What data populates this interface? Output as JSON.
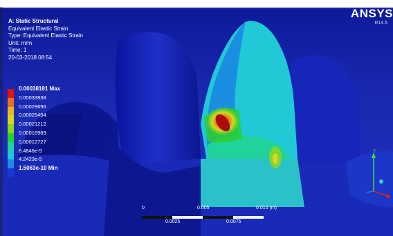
{
  "analysis": {
    "title": "A: Static Structural",
    "result": "Equivalent Elastic Strain",
    "type": "Type: Equivalent Elastic Strain",
    "unit": "Unit: m/m",
    "time": "Time: 1",
    "date": "20-03-2018 08:54"
  },
  "legend": {
    "entries": [
      {
        "label": "0.00038181 Max",
        "color": "#e0140c",
        "bold": true
      },
      {
        "label": "0.00033938",
        "color": "#e8701a"
      },
      {
        "label": "0.00029696",
        "color": "#e6b81e"
      },
      {
        "label": "0.00025454",
        "color": "#d8d81e"
      },
      {
        "label": "0.00021212",
        "color": "#8ed61c"
      },
      {
        "label": "0.00016969",
        "color": "#2ccf2c"
      },
      {
        "label": "0.00012727",
        "color": "#21d29a"
      },
      {
        "label": "8.4846e-5",
        "color": "#21c8d6"
      },
      {
        "label": "4.2423e-5",
        "color": "#1c8ee2"
      },
      {
        "label": "1.5063e-10 Min",
        "color": "#1838d6",
        "bold": true
      }
    ]
  },
  "branding": {
    "logo": "ANSYS",
    "release": "R14.5"
  },
  "scale_bar": {
    "label_start": "0",
    "label_mid_top": "0.005",
    "label_end": "0.010 (m)",
    "label_q1": "0.0025",
    "label_q3": "0.0075"
  },
  "triad": {
    "y_label": "Y",
    "z_label": "Z",
    "x_label": "X"
  }
}
